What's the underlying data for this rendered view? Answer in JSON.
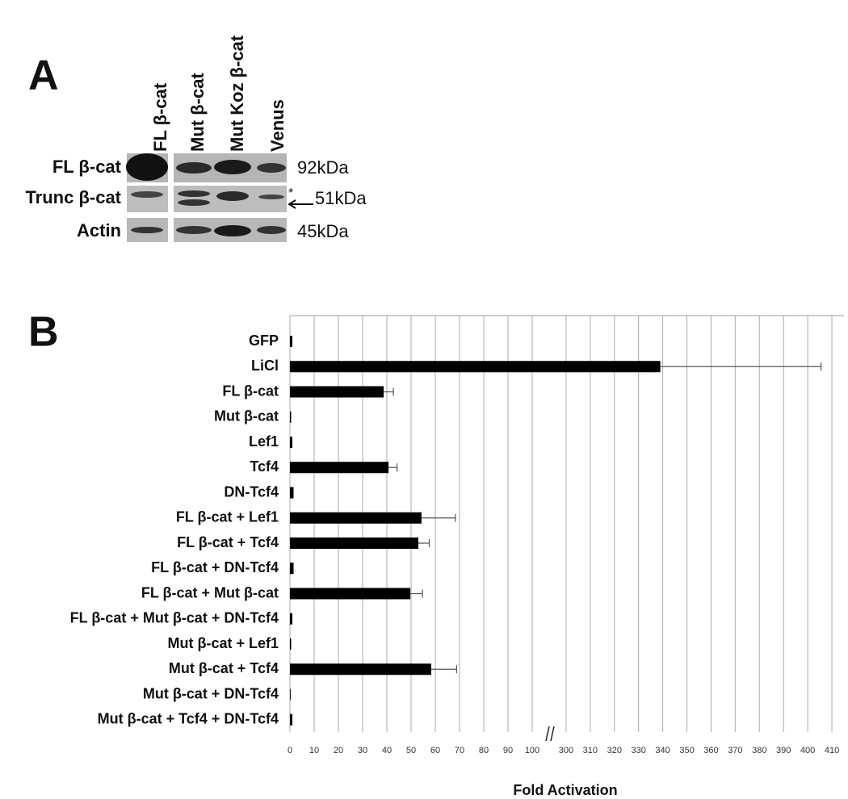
{
  "panel_a": {
    "label": "A",
    "lanes": [
      "FL β-cat",
      "Mut β-cat",
      "Mut Koz β-cat",
      "Venus"
    ],
    "rows": [
      {
        "label": "FL β-cat",
        "size": "92kDa"
      },
      {
        "label": "Trunc β-cat",
        "size": "51kDa"
      },
      {
        "label": "Actin",
        "size": "45kDa"
      }
    ],
    "marker": "*"
  },
  "chart_data": {
    "type": "bar",
    "orientation": "horizontal",
    "panel_label": "B",
    "x_label": "Fold Activation",
    "categories": [
      "GFP",
      "LiCl",
      "FL β-cat",
      "Mut β-cat",
      "Lef1",
      "Tcf4",
      "DN-Tcf4",
      "FL β-cat + Lef1",
      "FL β-cat + Tcf4",
      "FL β-cat + DN-Tcf4",
      "FL β-cat + Mut β-cat",
      "FL β-cat + Mut β-cat + DN-Tcf4",
      "Mut β-cat + Lef1",
      "Mut β-cat + Tcf4",
      "Mut β-cat + DN-Tcf4",
      "Mut β-cat + Tcf4 + DN-Tcf4"
    ],
    "values": [
      1,
      339,
      38.7,
      0.5,
      1,
      40.7,
      1.5,
      54.3,
      53,
      1.5,
      49.7,
      1,
      0.5,
      58.3,
      0.3,
      1
    ],
    "errors": [
      0,
      66.5,
      4,
      0,
      0,
      3.5,
      0,
      14,
      4.5,
      0,
      5,
      0,
      0,
      10.5,
      0,
      0
    ],
    "color": "#000000",
    "xlim": [
      0,
      415
    ],
    "x_break": [
      107,
      293
    ],
    "xticks": [
      0,
      10,
      20,
      30,
      40,
      50,
      60,
      70,
      80,
      90,
      100,
      300,
      310,
      320,
      330,
      340,
      350,
      360,
      370,
      380,
      390,
      400,
      410
    ],
    "grid": true
  }
}
